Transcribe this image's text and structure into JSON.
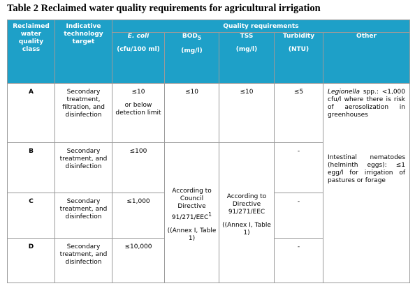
{
  "title": "Table 2 Reclaimed water quality requirements for agricultural irrigation",
  "header": {
    "class": "Reclaimed water quality class",
    "technology": "Indicative technology target",
    "quality": "Quality requirements",
    "columns": [
      {
        "name": "E. coli",
        "unit": "(cfu/100 ml)"
      },
      {
        "name": "BOD",
        "sub": "5",
        "unit": "(mg/l)"
      },
      {
        "name": "TSS",
        "unit": "(mg/l)"
      },
      {
        "name": "Turbidity",
        "unit": "(NTU)"
      },
      {
        "name": "Other"
      }
    ]
  },
  "rows": [
    {
      "class": "A",
      "technology": "Secondary treatment, filtration, and disinfection",
      "ecoli": "≤10",
      "ecoli_note": "or below detection limit",
      "bod": "≤10",
      "tss": "≤10",
      "turbidity": "≤5"
    },
    {
      "class": "B",
      "technology": "Secondary treatment, and disinfection",
      "ecoli": "≤100",
      "turbidity": "-"
    },
    {
      "class": "C",
      "technology": "Secondary treatment, and disinfection",
      "ecoli": "≤1,000",
      "turbidity": "-"
    },
    {
      "class": "D",
      "technology": "Secondary treatment, and disinfection",
      "ecoli": "≤10,000",
      "turbidity": "-"
    }
  ],
  "merged": {
    "bod": {
      "text": "According to Council Directive 91/271/EEC",
      "footnote": "1",
      "annex": "((Annex I, Table 1)"
    },
    "tss": {
      "text": "According to Directive 91/271/EEC",
      "annex": "((Annex I, Table 1)"
    },
    "other_a": {
      "organism": "Legionella",
      "text": "spp.: <1,000 cfu/l where there is risk of aerosolization in greenhouses"
    },
    "other_bcd": "Intestinal nematodes (helminth eggs): ≤1 egg/l for irrigation of pastures or forage"
  }
}
